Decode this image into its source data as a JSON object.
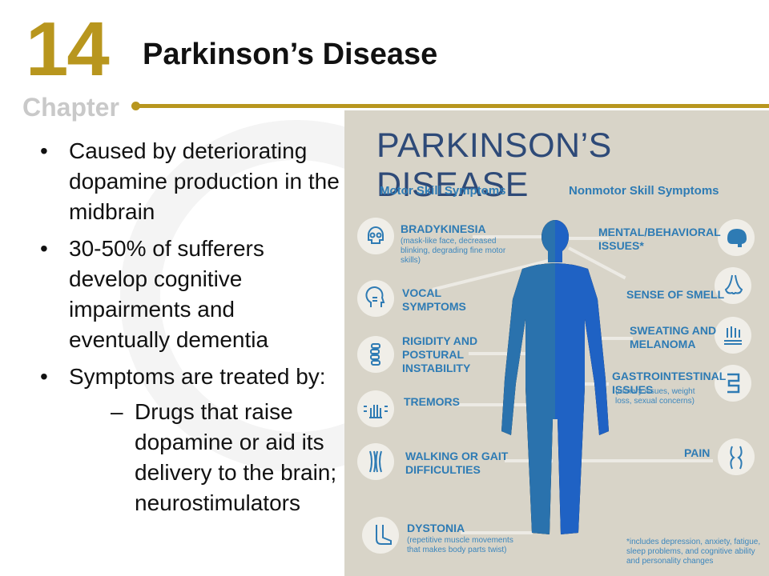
{
  "chapter": {
    "number": "14",
    "word": "Chapter"
  },
  "slide": {
    "title": "Parkinson’s Disease"
  },
  "bullets": [
    {
      "text": "Caused by deteriorating dopamine production in the midbrain"
    },
    {
      "text": "30-50% of sufferers develop cognitive impairments and eventually dementia"
    },
    {
      "text": "Symptoms are treated by:"
    }
  ],
  "subbullets": [
    {
      "text": "Drugs that raise dopamine or aid its delivery to the brain; neurostimulators"
    }
  ],
  "infographic": {
    "title": "PARKINSON’S DISEASE",
    "motor_heading": "Motor Skill Symptoms",
    "nonmotor_heading": "Nonmotor Skill Symptoms",
    "motor": [
      {
        "label": "BRADYKINESIA",
        "note": "(mask-like face, decreased blinking, degrading fine motor skills)",
        "icon": "skull-icon"
      },
      {
        "label": "VOCAL SYMPTOMS",
        "note": "",
        "icon": "head-profile-icon"
      },
      {
        "label": "RIGIDITY AND POSTURAL INSTABILITY",
        "note": "",
        "icon": "spine-icon"
      },
      {
        "label": "TREMORS",
        "note": "",
        "icon": "hand-icon"
      },
      {
        "label": "WALKING OR GAIT DIFFICULTIES",
        "note": "",
        "icon": "muscle-icon"
      },
      {
        "label": "DYSTONIA",
        "note": "(repetitive muscle movements that makes body parts twist)",
        "icon": "foot-icon"
      }
    ],
    "nonmotor": [
      {
        "label": "MENTAL/BEHAVIORAL ISSUES*",
        "note": "",
        "icon": "brain-icon"
      },
      {
        "label": "SENSE OF SMELL",
        "note": "",
        "icon": "nose-icon"
      },
      {
        "label": "SWEATING AND MELANOMA",
        "note": "",
        "icon": "skin-icon"
      },
      {
        "label": "GASTROINTESTINAL ISSUES",
        "note": "(urinary issues, weight loss, sexual concerns)",
        "icon": "intestine-icon"
      },
      {
        "label": "PAIN",
        "note": "",
        "icon": "knee-joint-icon"
      }
    ],
    "footnote": "*includes depression, anxiety, fatigue, sleep problems, and cognitive ability and personality changes",
    "colors": {
      "left_body": "#2a72ad",
      "right_body": "#1f62c4",
      "accent": "#2e7bb4",
      "title": "#2e4a78",
      "background": "#d8d4c8"
    }
  }
}
